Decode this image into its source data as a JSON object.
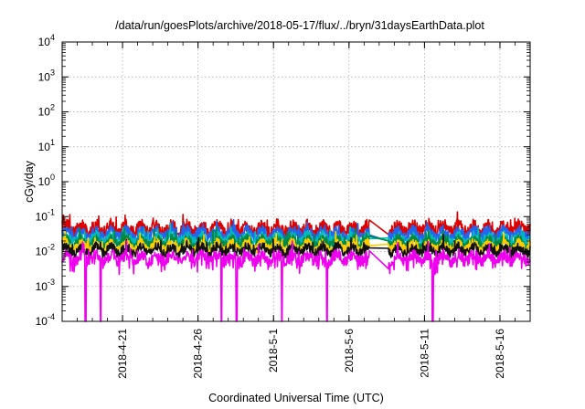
{
  "chart_data": {
    "type": "line",
    "title": "/data/run/goesPlots/archive/2018-05-17/flux/../bryn/31daysEarthData.plot",
    "xlabel": "Coordinated Universal Time (UTC)",
    "ylabel": "cGy/day",
    "y_scale": "log",
    "ylim": [
      0.0001,
      10000
    ],
    "y_ticks": [
      {
        "value": 0.0001,
        "exp": "-4"
      },
      {
        "value": 0.001,
        "exp": "-3"
      },
      {
        "value": 0.01,
        "exp": "-2"
      },
      {
        "value": 0.1,
        "exp": "-1"
      },
      {
        "value": 1,
        "exp": "0"
      },
      {
        "value": 10,
        "exp": "1"
      },
      {
        "value": 100,
        "exp": "2"
      },
      {
        "value": 1000,
        "exp": "3"
      },
      {
        "value": 10000,
        "exp": "4"
      }
    ],
    "y_tick_base": "10",
    "xlim": [
      "2018-04-17",
      "2018-05-18"
    ],
    "x_ticks": [
      "2018-4-21",
      "2018-4-26",
      "2018-5-1",
      "2018-5-6",
      "2018-5-11",
      "2018-5-16"
    ],
    "x_tick_dates": [
      "2018-04-21",
      "2018-04-26",
      "2018-05-01",
      "2018-05-06",
      "2018-05-11",
      "2018-05-16"
    ],
    "grid": true,
    "data_gap": [
      "2018-05-07",
      "2018-05-08"
    ],
    "dropouts": [
      "2018-04-18",
      "2018-04-19",
      "2018-04-27",
      "2018-04-28",
      "2018-05-01",
      "2018-05-04",
      "2018-05-11",
      "2018-05-18"
    ],
    "series": [
      {
        "color": "#dd0000",
        "level": 0.045,
        "amplitude": 0.18
      },
      {
        "color": "#2266ee",
        "level": 0.032,
        "amplitude": 0.16
      },
      {
        "color": "#00bbbb",
        "level": 0.022,
        "amplitude": 0.16
      },
      {
        "color": "#008844",
        "level": 0.018,
        "amplitude": 0.14
      },
      {
        "color": "#ffcc00",
        "level": 0.014,
        "amplitude": 0.14
      },
      {
        "color": "#111111",
        "level": 0.011,
        "amplitude": 0.13
      },
      {
        "color": "#ee00ee",
        "level": 0.0065,
        "amplitude": 0.16
      }
    ]
  }
}
